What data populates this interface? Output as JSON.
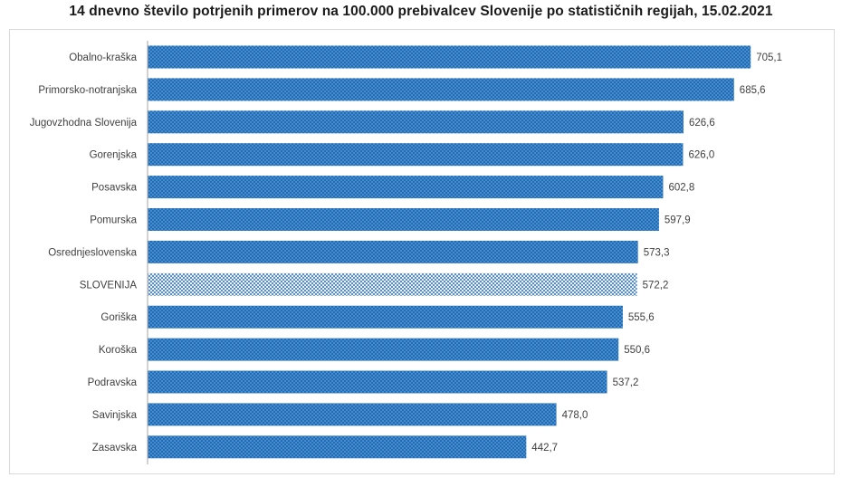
{
  "chart_data": {
    "type": "bar",
    "orientation": "horizontal",
    "title": "14 dnevno število potrjenih primerov na 100.000  prebivalcev Slovenije po statističnih regijah, 15.02.2021",
    "xlabel": "",
    "ylabel": "",
    "xlim": [
      0,
      725
    ],
    "categories": [
      "Obalno-kraška",
      "Primorsko-notranjska",
      "Jugovzhodna Slovenija",
      "Gorenjska",
      "Posavska",
      "Pomurska",
      "Osrednjeslovenska",
      "SLOVENIJA",
      "Goriška",
      "Koroška",
      "Podravska",
      "Savinjska",
      "Zasavska"
    ],
    "values": [
      705.1,
      685.6,
      626.6,
      626.0,
      602.8,
      597.9,
      573.3,
      572.2,
      555.6,
      550.6,
      537.2,
      478.0,
      442.7
    ],
    "value_labels": [
      "705,1",
      "685,6",
      "626,6",
      "626,0",
      "602,8",
      "597,9",
      "573,3",
      "572,2",
      "555,6",
      "550,6",
      "537,2",
      "478,0",
      "442,7"
    ],
    "highlight_category": "SLOVENIJA",
    "grid": false,
    "legend": "none"
  },
  "colors": {
    "bar_fill": "#3d8fd9",
    "bar_dots": "#1b4f86",
    "highlight_fill": "#e8f1fb",
    "highlight_dots": "#2f6fae",
    "axis": "#a6a6a6"
  }
}
